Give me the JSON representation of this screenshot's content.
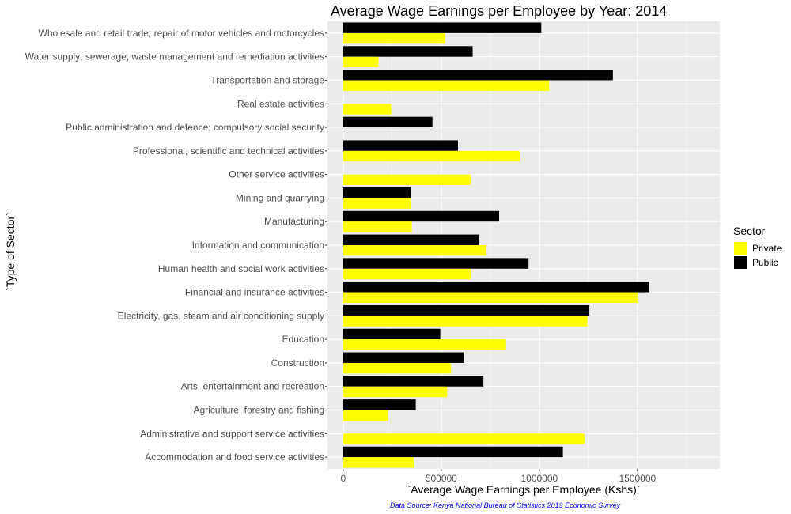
{
  "chart_data": {
    "type": "bar",
    "orientation": "horizontal",
    "title": "Average Wage Earnings per Employee by Year: 2014",
    "xlabel": "`Average Wage Earnings per Employee (Kshs)`",
    "ylabel": "`Type of Sector`",
    "caption": "Data Source: Kenya National Bureau of Statistics 2019 Economic Survey",
    "xlim": [
      -80000,
      1920000
    ],
    "xticks": [
      0,
      500000,
      1000000,
      1500000
    ],
    "xtick_labels": [
      "0",
      "500000",
      "1000000",
      "1500000"
    ],
    "grid": true,
    "legend": {
      "title": "Sector",
      "position": "right"
    },
    "categories": [
      "Accommodation and food service activities",
      "Administrative and support service activities",
      "Agriculture, forestry and fishing",
      "Arts, entertainment and recreation",
      "Construction",
      "Education",
      "Electricity, gas, steam and air conditioning supply",
      "Financial and insurance activities",
      "Human health and social work activities",
      "Information and communication",
      "Manufacturing",
      "Mining and quarrying",
      "Other service activities",
      "Professional, scientific and technical activities",
      "Public administration and defence; compulsory social security",
      "Real estate activities",
      "Transportation and storage",
      "Water supply; sewerage, waste management and remediation activities",
      "Wholesale and retail trade; repair of motor vehicles and motorcycles"
    ],
    "series": [
      {
        "name": "Private",
        "color": "#ffff00",
        "values": [
          360000,
          1230000,
          230000,
          530000,
          550000,
          830000,
          1245000,
          1500000,
          650000,
          730000,
          350000,
          345000,
          650000,
          900000,
          null,
          245000,
          1050000,
          180000,
          520000
        ]
      },
      {
        "name": "Public",
        "color": "#000000",
        "values": [
          1120000,
          null,
          370000,
          715000,
          615000,
          495000,
          1255000,
          1560000,
          945000,
          690000,
          795000,
          345000,
          null,
          585000,
          455000,
          null,
          1375000,
          660000,
          1010000
        ]
      }
    ],
    "panel_color": "#ebebeb",
    "grid_color": "#ffffff"
  }
}
